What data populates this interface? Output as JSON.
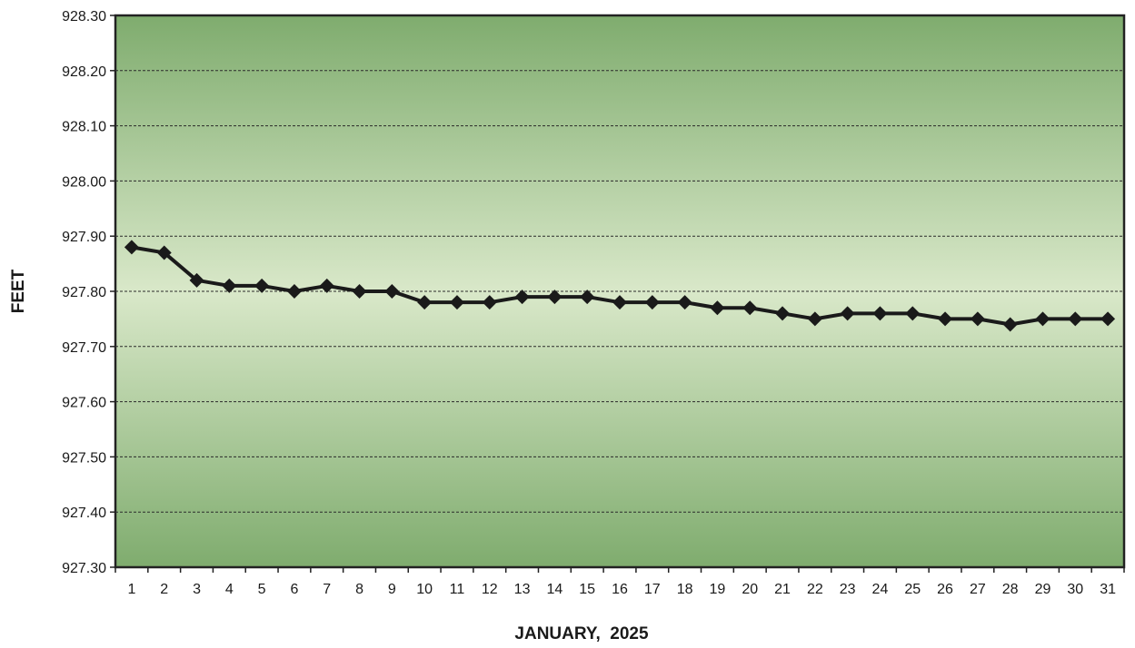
{
  "chart_data": {
    "type": "line",
    "title": "",
    "xlabel": "JANUARY,  2025",
    "ylabel": "FEET",
    "categories": [
      "1",
      "2",
      "3",
      "4",
      "5",
      "6",
      "7",
      "8",
      "9",
      "10",
      "11",
      "12",
      "13",
      "14",
      "15",
      "16",
      "17",
      "18",
      "19",
      "20",
      "21",
      "22",
      "23",
      "24",
      "25",
      "26",
      "27",
      "28",
      "29",
      "30",
      "31"
    ],
    "series": [
      {
        "values": [
          927.88,
          927.87,
          927.82,
          927.81,
          927.81,
          927.8,
          927.81,
          927.8,
          927.8,
          927.78,
          927.78,
          927.78,
          927.79,
          927.79,
          927.79,
          927.78,
          927.78,
          927.78,
          927.77,
          927.77,
          927.76,
          927.75,
          927.76,
          927.76,
          927.76,
          927.75,
          927.75,
          927.74,
          927.75,
          927.75,
          927.75
        ],
        "color": "#1a1a1a",
        "marker": "diamond"
      }
    ],
    "ylim": [
      927.3,
      928.3
    ],
    "yticks": [
      "927.30",
      "927.40",
      "927.50",
      "927.60",
      "927.70",
      "927.80",
      "927.90",
      "928.00",
      "928.10",
      "928.20",
      "928.30"
    ],
    "grid": true,
    "legend": "none",
    "plot_background": [
      "#7fac6e",
      "#d9e8c9",
      "#7fac6e"
    ]
  }
}
